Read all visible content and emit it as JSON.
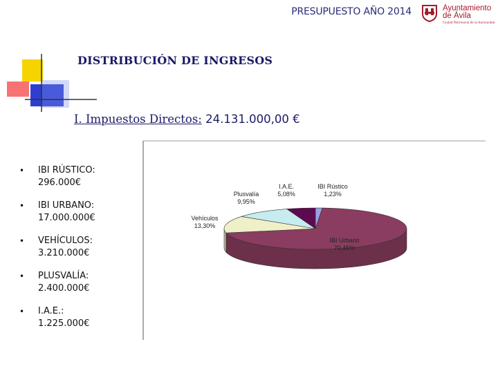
{
  "header": {
    "title": "PRESUPUESTO AÑO 2014",
    "logo": {
      "line1": "Ayuntamiento",
      "line2": "de Ávila",
      "tagline": "Ciudad Patrimonio de la Humanidad"
    }
  },
  "section_title": "DISTRIBUCIÓN DE INGRESOS",
  "subtitle": {
    "label": "I. Impuestos Directos:",
    "amount": "24.131.000,00 €"
  },
  "items": [
    {
      "line1": "IBI RÚSTICO:",
      "line2": "296.000€"
    },
    {
      "line1": "IBI URBANO:",
      "line2": "17.000.000€"
    },
    {
      "line1": "VEHÍCULOS:",
      "line2": "3.210.000€"
    },
    {
      "line1": "PLUSVALÍA:",
      "line2": "2.400.000€"
    },
    {
      "line1": "I.A.E.:",
      "line2": "1.225.000€"
    }
  ],
  "chart_data": {
    "type": "pie",
    "title": "",
    "series": [
      {
        "label": "IBI Rústico",
        "percent_label": "1,23%",
        "value": 1.23,
        "color": "#9d9de6"
      },
      {
        "label": "IBI Urbano",
        "percent_label": "70,45%",
        "value": 70.45,
        "color": "#8a3d60"
      },
      {
        "label": "Vehículos",
        "percent_label": "13,30%",
        "value": 13.3,
        "color": "#f0f0c8"
      },
      {
        "label": "Plusvalía",
        "percent_label": "9,95%",
        "value": 9.95,
        "color": "#c6ecf0"
      },
      {
        "label": "I.A.E.",
        "percent_label": "5,08%",
        "value": 5.08,
        "color": "#5e0a50"
      }
    ],
    "legend": "none",
    "style": "3d-pie"
  }
}
